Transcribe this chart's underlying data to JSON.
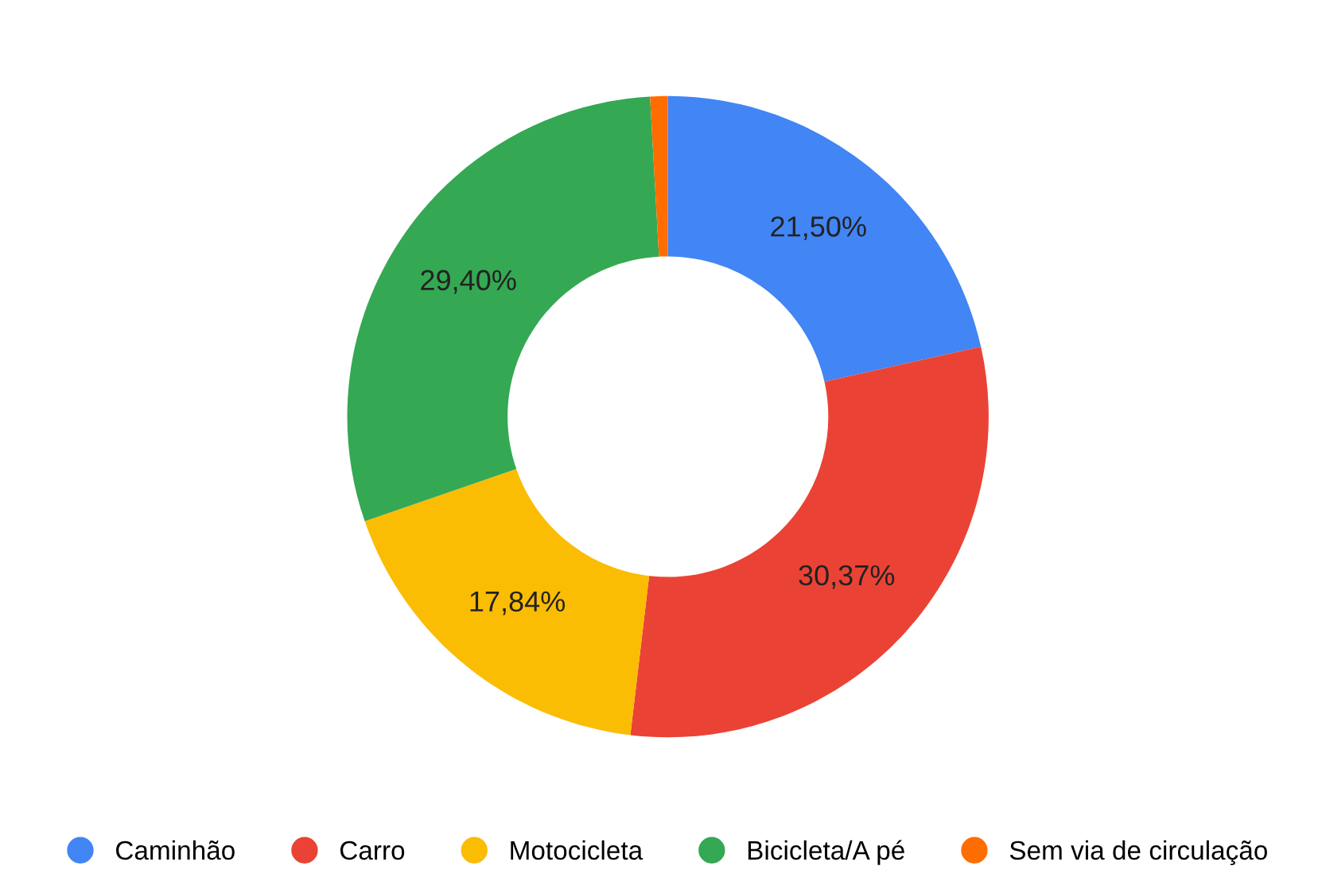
{
  "chart_data": {
    "type": "donut",
    "categories": [
      "Caminhão",
      "Carro",
      "Motocicleta",
      "Bicicleta/A pé",
      "Sem via de circulação"
    ],
    "values": [
      21.5,
      30.37,
      17.84,
      29.4,
      0.89
    ],
    "value_labels": [
      "21,50%",
      "30,37%",
      "17,84%",
      "29,40%",
      null
    ],
    "colors": [
      "#4285f4",
      "#ea4335",
      "#fbbc04",
      "#34a853",
      "#ff6d01"
    ],
    "legend": "bottom"
  }
}
